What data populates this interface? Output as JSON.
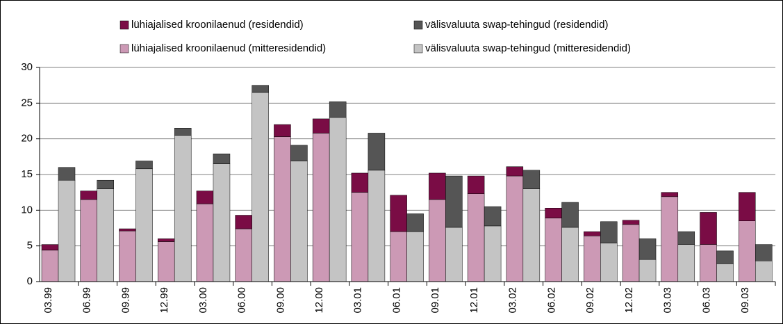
{
  "chart_data": {
    "type": "bar",
    "categories": [
      "03.99",
      "06.99",
      "09.99",
      "12.99",
      "03.00",
      "06.00",
      "09.00",
      "12.00",
      "03.01",
      "06.01",
      "09.01",
      "12.01",
      "03.02",
      "06.02",
      "09.02",
      "12.02",
      "03.03",
      "06.03",
      "09.03"
    ],
    "series": [
      {
        "name": "lühiajalised kroonilaenud (residendid)",
        "color": "#7a0c45",
        "values": [
          0.8,
          1.2,
          0.3,
          0.4,
          1.8,
          1.9,
          1.7,
          2.0,
          2.7,
          5.1,
          3.7,
          2.5,
          1.3,
          1.4,
          0.6,
          0.6,
          0.6,
          4.5,
          4.0
        ]
      },
      {
        "name": "välisvaluuta swap-tehingud (residendid)",
        "color": "#555555",
        "values": [
          1.8,
          1.2,
          1.1,
          1.0,
          1.4,
          1.0,
          2.2,
          2.2,
          5.2,
          2.5,
          7.2,
          2.7,
          2.6,
          3.5,
          3.0,
          2.9,
          1.8,
          1.8,
          2.3
        ]
      },
      {
        "name": "lühiajalised kroonilaenud (mitteresidendid)",
        "color": "#cc99b5",
        "values": [
          4.4,
          11.5,
          7.1,
          5.6,
          10.9,
          7.4,
          20.3,
          20.8,
          12.5,
          7.0,
          11.5,
          12.3,
          14.8,
          8.9,
          6.4,
          8.0,
          11.9,
          5.2,
          8.5
        ]
      },
      {
        "name": "välisvaluuta swap-tehingud (mitteresidendid)",
        "color": "#c4c4c4",
        "values": [
          14.2,
          13.0,
          15.8,
          20.5,
          16.5,
          26.5,
          16.9,
          23.0,
          15.6,
          7.0,
          7.6,
          7.8,
          13.0,
          7.6,
          5.4,
          3.1,
          5.2,
          2.5,
          2.9
        ]
      }
    ],
    "ylim": [
      0,
      30
    ],
    "yticks": [
      0,
      5,
      10,
      15,
      20,
      25,
      30
    ],
    "grid": true
  }
}
